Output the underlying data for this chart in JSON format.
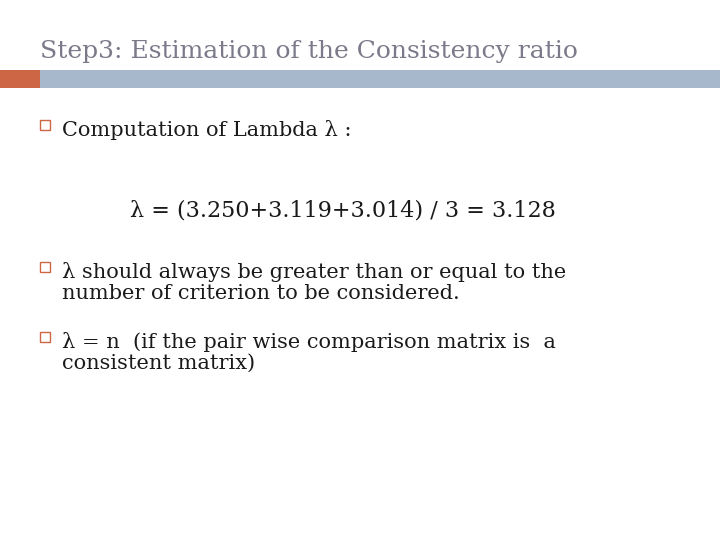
{
  "title": "Step3: Estimation of the Consistency ratio",
  "title_color": "#7a7a8a",
  "title_fontsize": 18,
  "title_font": "DejaVu Serif",
  "background_color": "#ffffff",
  "header_bar_color": "#a8b8cc",
  "header_bar_orange": "#cc6644",
  "bullet_color": "#cc6644",
  "bullet1_text": "Computation of Lambda λ :",
  "formula_text": "λ = (3.250+3.119+3.014) / 3 = 3.128",
  "bullet2_text1": "λ should always be greater than or equal to the",
  "bullet2_text2": "number of criterion to be considered.",
  "bullet3_text1": "λ = n  (if the pair wise comparison matrix is  a",
  "bullet3_text2": "consistent matrix)",
  "text_color": "#1a1a1a",
  "text_fontsize": 15,
  "formula_fontsize": 16
}
